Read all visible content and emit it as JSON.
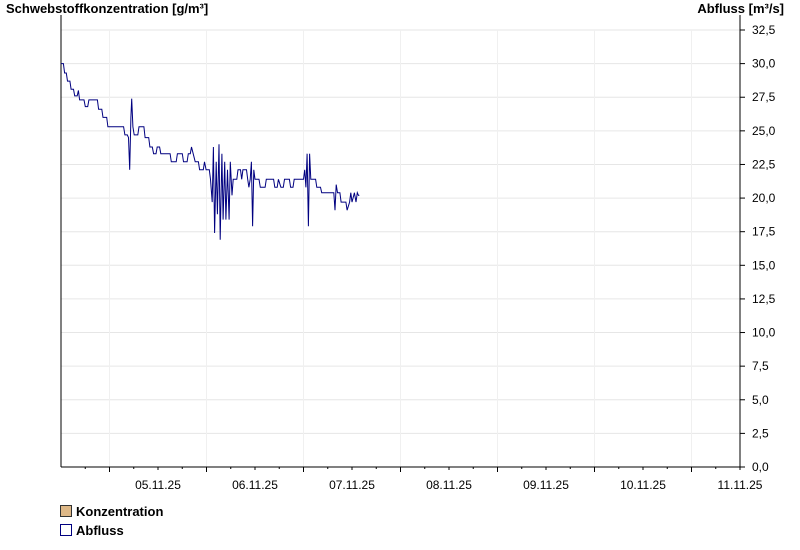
{
  "chart_data": {
    "type": "line",
    "left_axis_label": "Schwebstoffkonzentration [g/m³]",
    "right_axis_label": "Abfluss [m³/s]",
    "y_right": {
      "range": [
        0,
        32.5
      ],
      "ticks": [
        "0,0",
        "2,5",
        "5,0",
        "7,5",
        "10,0",
        "12,5",
        "15,0",
        "17,5",
        "20,0",
        "22,5",
        "25,0",
        "27,5",
        "30,0",
        "32,5"
      ]
    },
    "x_axis": {
      "start": "04.11.25 12:00",
      "end": "11.11.25 12:00",
      "tick_labels": [
        "05.11.25",
        "06.11.25",
        "07.11.25",
        "08.11.25",
        "09.11.25",
        "10.11.25",
        "11.11.25"
      ]
    },
    "grid": true,
    "legend": [
      {
        "name": "Konzentration",
        "color": "#deb887"
      },
      {
        "name": "Abfluss",
        "color": "#000080"
      }
    ],
    "series": [
      {
        "name": "Abfluss",
        "color": "#000080",
        "x_unit": "hours since 04.11.25 00:00",
        "points": [
          [
            12.0,
            30.0
          ],
          [
            12.6,
            30.0
          ],
          [
            12.9,
            29.3
          ],
          [
            13.3,
            29.3
          ],
          [
            13.6,
            28.7
          ],
          [
            14.2,
            28.7
          ],
          [
            14.5,
            28.1
          ],
          [
            15.1,
            28.1
          ],
          [
            15.4,
            27.6
          ],
          [
            16.0,
            27.6
          ],
          [
            16.3,
            28.0
          ],
          [
            16.6,
            27.3
          ],
          [
            17.7,
            27.3
          ],
          [
            18.0,
            26.8
          ],
          [
            18.6,
            26.8
          ],
          [
            18.9,
            27.3
          ],
          [
            21.0,
            27.3
          ],
          [
            21.3,
            26.6
          ],
          [
            22.1,
            26.6
          ],
          [
            22.4,
            26.0
          ],
          [
            23.3,
            26.0
          ],
          [
            23.6,
            25.3
          ],
          [
            27.5,
            25.3
          ],
          [
            27.8,
            24.7
          ],
          [
            28.4,
            24.7
          ],
          [
            28.7,
            24.5
          ],
          [
            29.0,
            22.1
          ],
          [
            29.3,
            26.0
          ],
          [
            29.5,
            27.4
          ],
          [
            29.8,
            25.3
          ],
          [
            30.1,
            24.7
          ],
          [
            31.0,
            24.7
          ],
          [
            31.3,
            25.3
          ],
          [
            32.5,
            25.3
          ],
          [
            32.8,
            24.5
          ],
          [
            33.7,
            24.5
          ],
          [
            34.0,
            23.8
          ],
          [
            34.6,
            23.8
          ],
          [
            34.9,
            23.3
          ],
          [
            35.5,
            23.3
          ],
          [
            35.8,
            23.8
          ],
          [
            36.4,
            23.8
          ],
          [
            36.7,
            23.3
          ],
          [
            39.0,
            23.3
          ],
          [
            39.3,
            22.7
          ],
          [
            40.5,
            22.7
          ],
          [
            40.8,
            23.3
          ],
          [
            42.0,
            23.3
          ],
          [
            42.3,
            22.7
          ],
          [
            43.2,
            22.7
          ],
          [
            43.5,
            23.3
          ],
          [
            44.0,
            23.3
          ],
          [
            44.3,
            23.8
          ],
          [
            44.7,
            23.3
          ],
          [
            45.2,
            22.7
          ],
          [
            46.0,
            22.7
          ],
          [
            46.3,
            22.1
          ],
          [
            47.2,
            22.1
          ],
          [
            47.5,
            22.7
          ],
          [
            47.9,
            22.1
          ],
          [
            48.7,
            22.1
          ],
          [
            49.0,
            21.4
          ],
          [
            49.4,
            19.7
          ],
          [
            49.7,
            23.8
          ],
          [
            50.0,
            17.4
          ],
          [
            50.4,
            22.7
          ],
          [
            50.7,
            18.8
          ],
          [
            51.1,
            24.0
          ],
          [
            51.4,
            16.9
          ],
          [
            51.8,
            23.3
          ],
          [
            52.1,
            18.4
          ],
          [
            52.5,
            22.7
          ],
          [
            52.8,
            18.4
          ],
          [
            53.2,
            22.1
          ],
          [
            53.6,
            18.4
          ],
          [
            53.9,
            22.7
          ],
          [
            54.3,
            20.2
          ],
          [
            54.6,
            21.4
          ],
          [
            55.5,
            21.4
          ],
          [
            55.8,
            22.1
          ],
          [
            56.4,
            22.1
          ],
          [
            56.7,
            21.4
          ],
          [
            57.0,
            22.1
          ],
          [
            57.9,
            22.1
          ],
          [
            58.2,
            21.4
          ],
          [
            58.5,
            20.8
          ],
          [
            58.8,
            21.4
          ],
          [
            59.1,
            22.7
          ],
          [
            59.4,
            17.9
          ],
          [
            59.7,
            22.1
          ],
          [
            60.0,
            21.4
          ],
          [
            61.0,
            21.4
          ],
          [
            61.3,
            20.8
          ],
          [
            62.5,
            20.8
          ],
          [
            62.8,
            21.4
          ],
          [
            64.6,
            21.4
          ],
          [
            64.9,
            20.8
          ],
          [
            65.5,
            20.8
          ],
          [
            65.8,
            21.4
          ],
          [
            66.4,
            20.8
          ],
          [
            67.0,
            20.8
          ],
          [
            67.3,
            21.4
          ],
          [
            68.5,
            21.4
          ],
          [
            68.8,
            20.8
          ],
          [
            69.4,
            20.8
          ],
          [
            69.7,
            21.4
          ],
          [
            72.0,
            21.4
          ],
          [
            72.3,
            22.1
          ],
          [
            72.6,
            20.8
          ],
          [
            72.9,
            23.3
          ],
          [
            73.2,
            17.9
          ],
          [
            73.5,
            23.3
          ],
          [
            73.8,
            21.4
          ],
          [
            75.0,
            21.4
          ],
          [
            75.3,
            20.8
          ],
          [
            76.2,
            20.8
          ],
          [
            76.5,
            20.4
          ],
          [
            79.5,
            20.4
          ],
          [
            79.8,
            19.1
          ],
          [
            80.1,
            21.0
          ],
          [
            80.4,
            20.4
          ],
          [
            81.0,
            20.4
          ],
          [
            81.3,
            19.7
          ],
          [
            82.5,
            19.7
          ],
          [
            82.8,
            19.1
          ],
          [
            83.4,
            19.7
          ],
          [
            83.7,
            20.4
          ],
          [
            84.0,
            19.7
          ],
          [
            84.6,
            20.4
          ],
          [
            85.0,
            19.7
          ],
          [
            85.3,
            20.4
          ],
          [
            85.6,
            20.2
          ],
          [
            85.8,
            20.2
          ]
        ]
      }
    ]
  }
}
